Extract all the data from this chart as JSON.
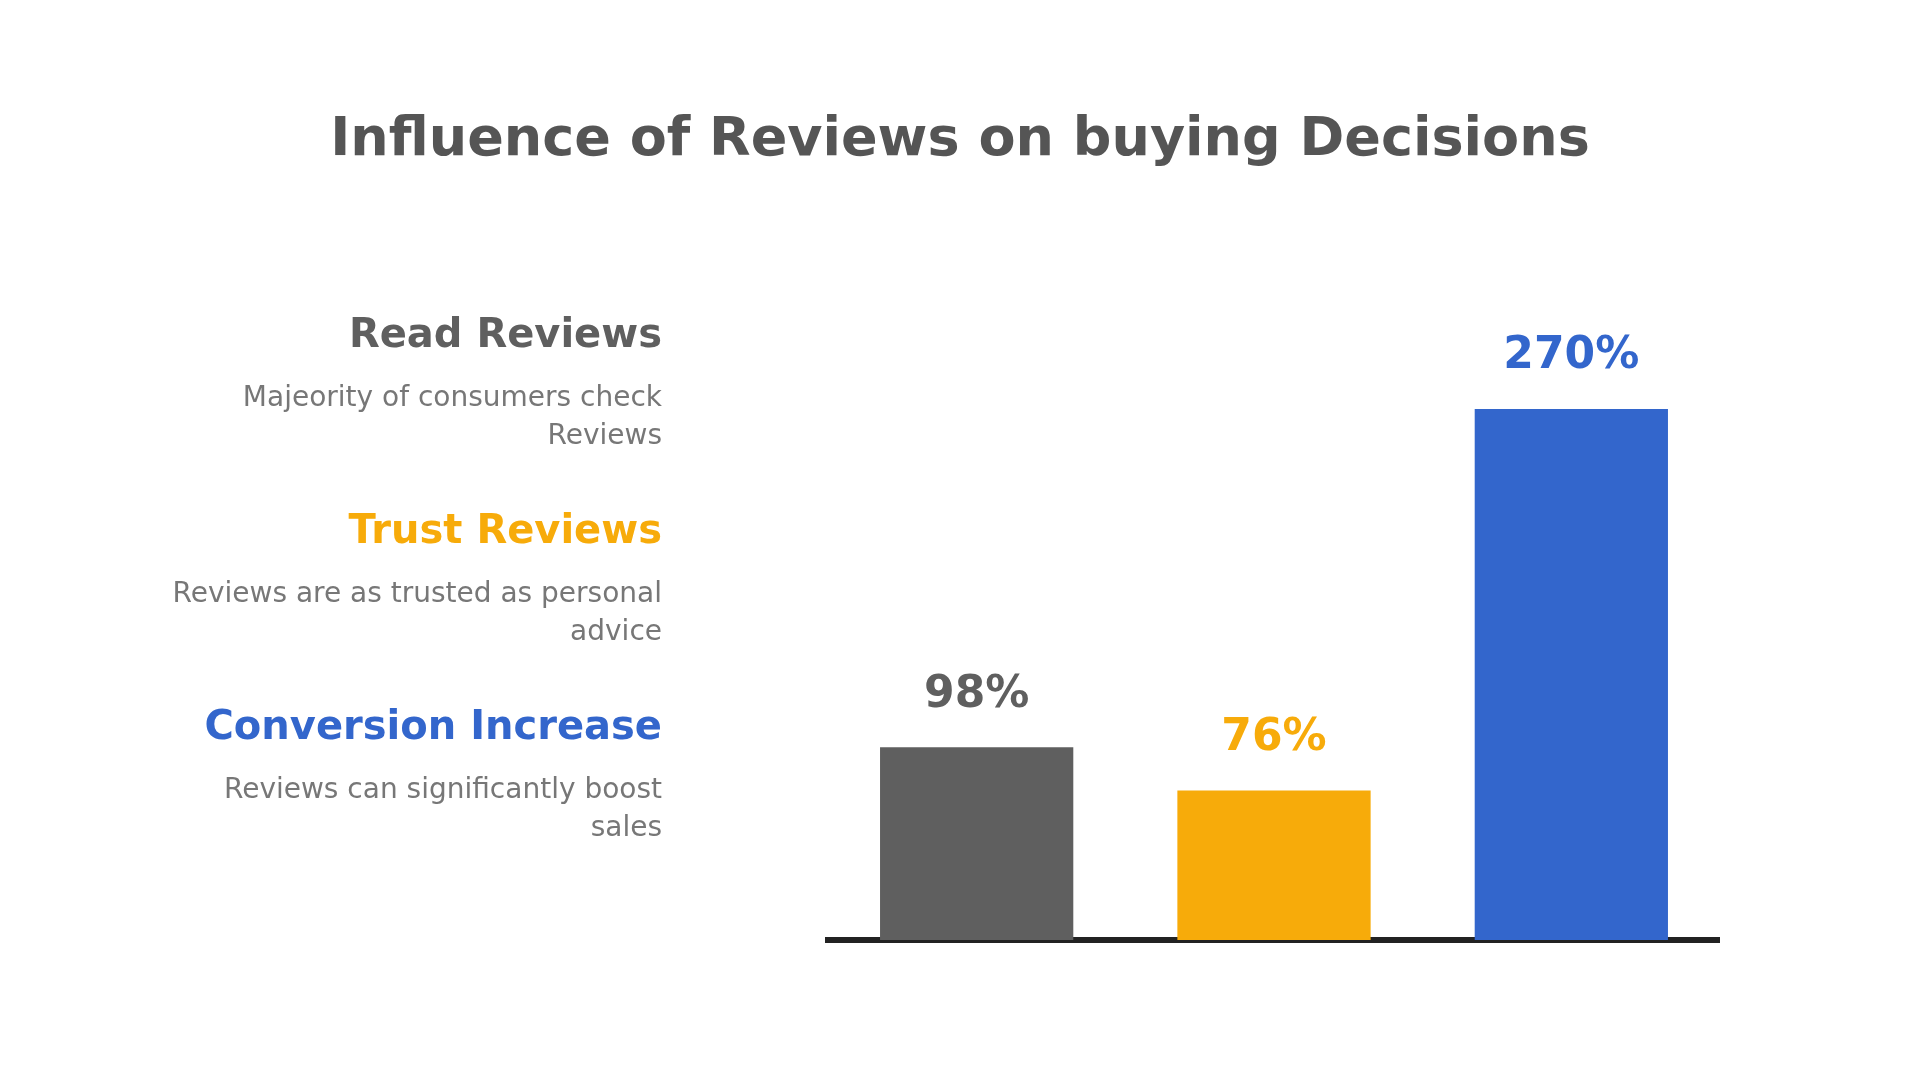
{
  "chart_data": {
    "type": "bar",
    "title": "Influence of Reviews on buying Decisions",
    "categories": [
      null,
      null,
      null
    ],
    "stacked": true,
    "grid": false,
    "series": [
      {
        "name": "Read Reviews",
        "color": "#5f5f5f",
        "values": [
          98,
          null,
          null
        ],
        "value_labels": [
          "98%",
          null,
          null
        ]
      },
      {
        "name": "Trust Reviews",
        "color": "#f7ab0a",
        "values": [
          null,
          76,
          null
        ],
        "value_labels": [
          null,
          "76%",
          null
        ]
      },
      {
        "name": "Conversion Increase",
        "color": "#3366cc",
        "values": [
          null,
          null,
          270
        ],
        "value_labels": [
          null,
          null,
          "270%"
        ]
      }
    ],
    "annotations": [
      "Majeority of consumers check Reviews",
      "Reviews are as trusted as personal advice",
      "Reviews can significantly boost sales"
    ],
    "legend": "left",
    "tick_labels": false
  }
}
